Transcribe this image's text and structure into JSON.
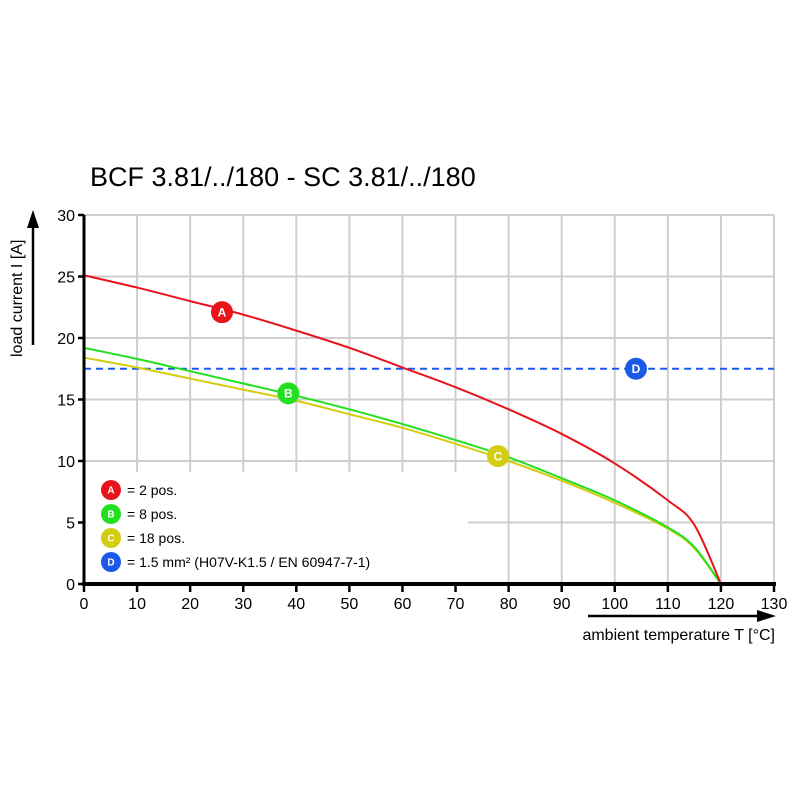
{
  "chart_data": {
    "type": "line",
    "title": "BCF 3.81/../180 - SC 3.81/../180",
    "xlabel": "ambient temperature T [°C]",
    "ylabel": "load current I [A]",
    "xlim": [
      0,
      130
    ],
    "ylim": [
      0,
      30
    ],
    "xticks": [
      0,
      10,
      20,
      30,
      40,
      50,
      60,
      70,
      80,
      90,
      100,
      110,
      120,
      130
    ],
    "yticks": [
      0,
      5,
      10,
      15,
      20,
      25,
      30
    ],
    "grid": true,
    "legend_placement": "bottom-left",
    "series": [
      {
        "name": "A",
        "label": "= 2 pos.",
        "color": "#e8141c",
        "x": [
          0,
          10,
          20,
          30,
          40,
          50,
          60,
          70,
          80,
          90,
          100,
          110,
          115,
          120
        ],
        "y": [
          25.1,
          24.1,
          23.0,
          21.9,
          20.6,
          19.2,
          17.6,
          16.0,
          14.2,
          12.2,
          9.8,
          6.8,
          4.8,
          0
        ],
        "marker": {
          "x": 26,
          "y": 22.1
        }
      },
      {
        "name": "B",
        "label": "= 8 pos.",
        "color": "#22e01e",
        "x": [
          0,
          10,
          20,
          30,
          40,
          50,
          60,
          70,
          80,
          90,
          100,
          110,
          115,
          120
        ],
        "y": [
          19.2,
          18.3,
          17.3,
          16.3,
          15.3,
          14.2,
          13.0,
          11.7,
          10.3,
          8.6,
          6.8,
          4.6,
          3.0,
          0
        ],
        "marker": {
          "x": 38.5,
          "y": 15.5
        }
      },
      {
        "name": "C",
        "label": "= 18 pos.",
        "color": "#d4cc10",
        "x": [
          0,
          10,
          20,
          30,
          40,
          50,
          60,
          70,
          80,
          90,
          100,
          110,
          115,
          120
        ],
        "y": [
          18.4,
          17.6,
          16.7,
          15.8,
          14.9,
          13.8,
          12.7,
          11.4,
          10.0,
          8.4,
          6.6,
          4.5,
          2.9,
          0
        ],
        "marker": {
          "x": 78,
          "y": 10.4
        }
      },
      {
        "name": "D",
        "label": "= 1.5 mm² (H07V-K1.5 / EN 60947-7-1)",
        "color": "#1a5ae6",
        "style": "dashed",
        "x": [
          0,
          130
        ],
        "y": [
          17.5,
          17.5
        ],
        "marker": {
          "x": 104,
          "y": 17.5
        }
      }
    ]
  }
}
